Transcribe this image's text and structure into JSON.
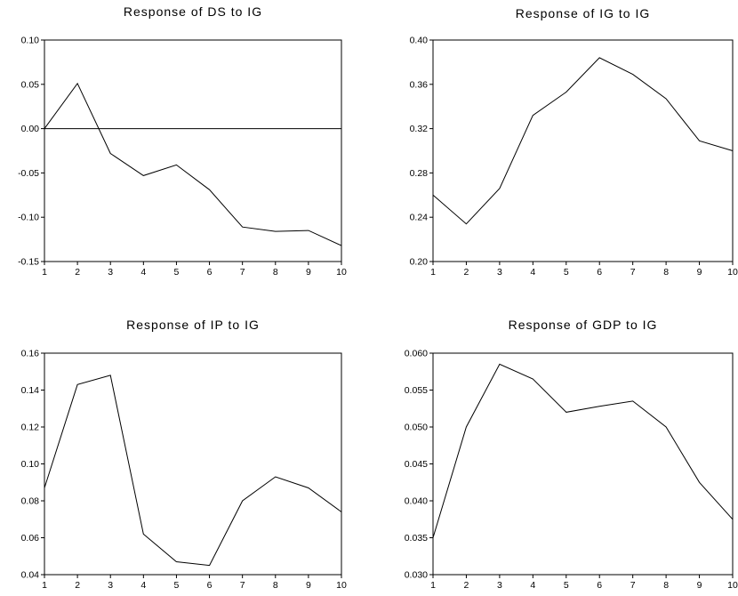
{
  "chart_data": [
    {
      "type": "line",
      "title": "Response of DS to IG",
      "x": [
        1,
        2,
        3,
        4,
        5,
        6,
        7,
        8,
        9,
        10
      ],
      "values": [
        0.0,
        0.051,
        -0.028,
        -0.053,
        -0.041,
        -0.069,
        -0.111,
        -0.116,
        -0.115,
        -0.132
      ],
      "ylim": [
        -0.15,
        0.1
      ],
      "yticks": [
        "0.10",
        "0.05",
        "0.00",
        "-0.05",
        "-0.10",
        "-0.15"
      ],
      "xticks": [
        "1",
        "2",
        "3",
        "4",
        "5",
        "6",
        "7",
        "8",
        "9",
        "10"
      ],
      "zero_line": true,
      "grid": false
    },
    {
      "type": "line",
      "title": "Response of IG to IG",
      "x": [
        1,
        2,
        3,
        4,
        5,
        6,
        7,
        8,
        9,
        10
      ],
      "values": [
        0.26,
        0.234,
        0.266,
        0.332,
        0.353,
        0.384,
        0.369,
        0.347,
        0.309,
        0.3
      ],
      "ylim": [
        0.2,
        0.4
      ],
      "yticks": [
        "0.40",
        "0.36",
        "0.32",
        "0.28",
        "0.24",
        "0.20"
      ],
      "xticks": [
        "1",
        "2",
        "3",
        "4",
        "5",
        "6",
        "7",
        "8",
        "9",
        "10"
      ],
      "zero_line": false,
      "grid": false
    },
    {
      "type": "line",
      "title": "Response of IP to IG",
      "x": [
        1,
        2,
        3,
        4,
        5,
        6,
        7,
        8,
        9,
        10
      ],
      "values": [
        0.087,
        0.143,
        0.148,
        0.062,
        0.047,
        0.045,
        0.08,
        0.093,
        0.087,
        0.074
      ],
      "ylim": [
        0.04,
        0.16
      ],
      "yticks": [
        "0.16",
        "0.14",
        "0.12",
        "0.10",
        "0.08",
        "0.06",
        "0.04"
      ],
      "xticks": [
        "1",
        "2",
        "3",
        "4",
        "5",
        "6",
        "7",
        "8",
        "9",
        "10"
      ],
      "zero_line": false,
      "grid": false
    },
    {
      "type": "line",
      "title": "Response of GDP to IG",
      "x": [
        1,
        2,
        3,
        4,
        5,
        6,
        7,
        8,
        9,
        10
      ],
      "values": [
        0.035,
        0.05,
        0.0585,
        0.0565,
        0.052,
        0.0528,
        0.0535,
        0.05,
        0.0425,
        0.0375
      ],
      "ylim": [
        0.03,
        0.06
      ],
      "yticks": [
        "0.060",
        "0.055",
        "0.050",
        "0.045",
        "0.040",
        "0.035",
        "0.030"
      ],
      "xticks": [
        "1",
        "2",
        "3",
        "4",
        "5",
        "6",
        "7",
        "8",
        "9",
        "10"
      ],
      "zero_line": false,
      "grid": false
    }
  ]
}
